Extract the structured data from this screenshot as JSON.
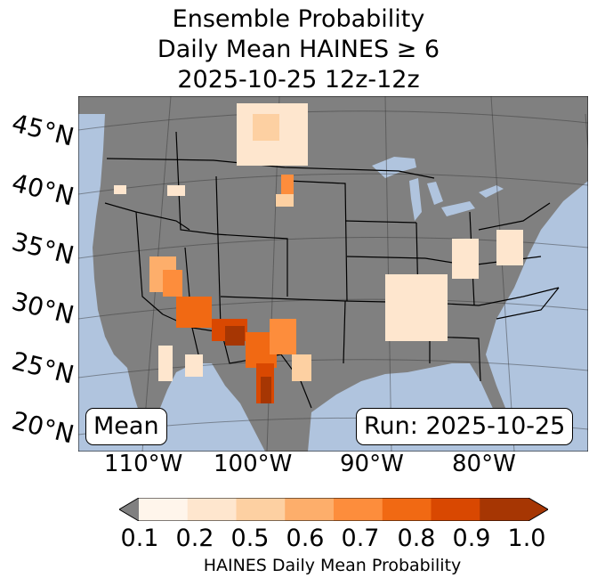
{
  "title": {
    "line1": "Ensemble Probability",
    "line2": "Daily Mean HAINES ≥ 6",
    "line3": "2025-10-25 12z-12z"
  },
  "map": {
    "latitude_labels": [
      "45°N",
      "40°N",
      "35°N",
      "30°N",
      "25°N",
      "20°N"
    ],
    "longitude_labels": [
      "110°W",
      "100°W",
      "90°W",
      "80°W"
    ],
    "colors": {
      "ocean": "#b0c4de",
      "land": "#808080"
    }
  },
  "boxes": {
    "mean": "Mean",
    "run": "Run: 2025-10-25"
  },
  "colorbar": {
    "ticks": [
      "0.1",
      "0.2",
      "0.5",
      "0.6",
      "0.7",
      "0.8",
      "0.9",
      "1.0"
    ],
    "colors": [
      "#fff5eb",
      "#fee6ce",
      "#fdd0a2",
      "#fdae6b",
      "#fd8d3c",
      "#f16913",
      "#d94801",
      "#a63603"
    ],
    "under_color": "#808080",
    "label": "HAINES Daily Mean Probability"
  }
}
